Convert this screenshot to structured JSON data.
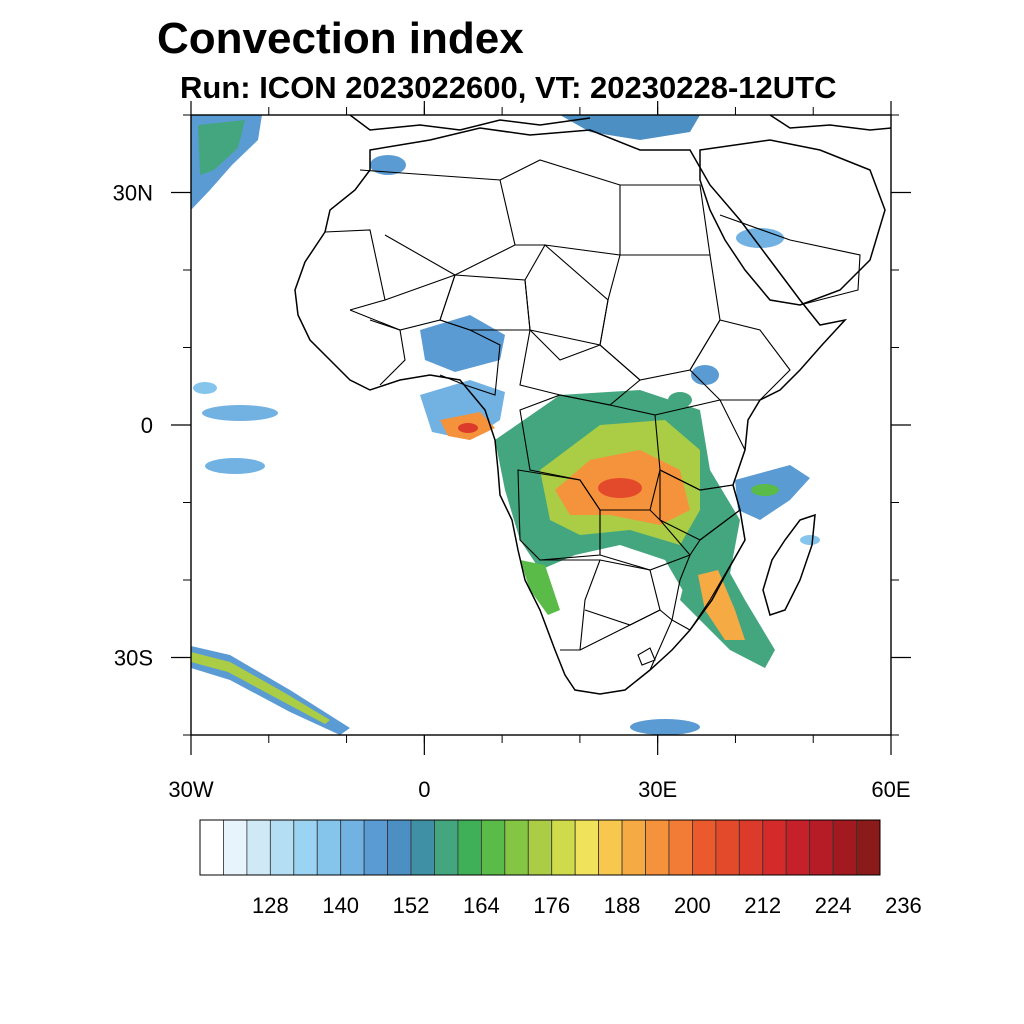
{
  "header": {
    "title": "Convection index",
    "subtitle": "Run: ICON 2023022600,  VT: 20230228-12UTC"
  },
  "axes": {
    "lon_ticks": [
      {
        "lon": -30,
        "label": "30W"
      },
      {
        "lon": 0,
        "label": "0"
      },
      {
        "lon": 30,
        "label": "30E"
      },
      {
        "lon": 60,
        "label": "60E"
      }
    ],
    "lat_ticks": [
      {
        "lat": 30,
        "label": "30N"
      },
      {
        "lat": 0,
        "label": "0"
      },
      {
        "lat": -30,
        "label": "30S"
      }
    ],
    "lon_range": [
      -30,
      60
    ],
    "lat_range": [
      -40,
      40
    ]
  },
  "colorbar": {
    "colors": [
      "#ffffff",
      "#e8f4fb",
      "#cfe9f7",
      "#b4def4",
      "#9bd4f3",
      "#85c5ec",
      "#71b2e3",
      "#5b9bd3",
      "#4c8fc2",
      "#3f90a4",
      "#44a67f",
      "#3fb058",
      "#5abb48",
      "#84c544",
      "#aacd45",
      "#cfdb4a",
      "#f0e25a",
      "#f8c84e",
      "#f6aa44",
      "#f5933c",
      "#f27b35",
      "#ea5a2c",
      "#e24a2b",
      "#dc3a2a",
      "#d42b2a",
      "#c6202a",
      "#b51c25",
      "#a21a20",
      "#8b1a1a"
    ],
    "labels": [
      "128",
      "140",
      "152",
      "164",
      "176",
      "188",
      "200",
      "212",
      "224",
      "236"
    ]
  }
}
